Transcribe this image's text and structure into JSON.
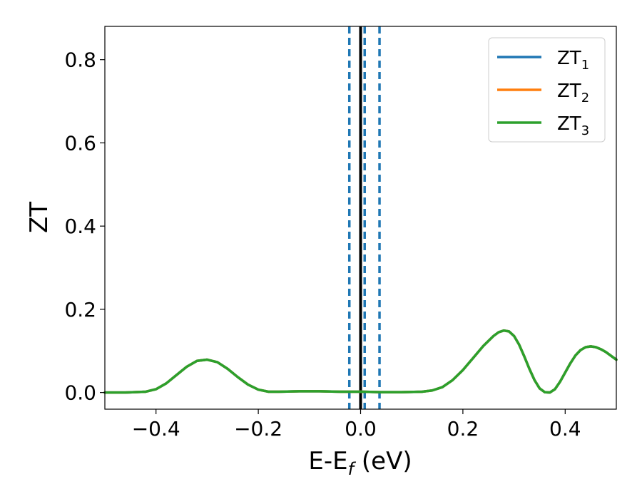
{
  "chart_data": {
    "type": "line",
    "xlabel_main": "E-E",
    "xlabel_sub": "f",
    "xlabel_unit": " (eV)",
    "ylabel": "ZT",
    "xlim": [
      -0.5,
      0.5
    ],
    "ylim": [
      -0.04,
      0.88
    ],
    "xticks": [
      {
        "value": -0.4,
        "label": "−0.4"
      },
      {
        "value": -0.2,
        "label": "−0.2"
      },
      {
        "value": 0.0,
        "label": "0.0"
      },
      {
        "value": 0.2,
        "label": "0.2"
      },
      {
        "value": 0.4,
        "label": "0.4"
      }
    ],
    "yticks": [
      {
        "value": 0.0,
        "label": "0.0"
      },
      {
        "value": 0.2,
        "label": "0.2"
      },
      {
        "value": 0.4,
        "label": "0.4"
      },
      {
        "value": 0.6,
        "label": "0.6"
      },
      {
        "value": 0.8,
        "label": "0.8"
      }
    ],
    "grid": false,
    "legend_position": "top-right",
    "series": [
      {
        "name_main": "ZT",
        "name_sub": "1",
        "color": "#1f77b4"
      },
      {
        "name_main": "ZT",
        "name_sub": "2",
        "color": "#ff7f0e"
      },
      {
        "name_main": "ZT",
        "name_sub": "3",
        "color": "#2ca02c"
      }
    ],
    "curve": {
      "x": [
        -0.5,
        -0.46,
        -0.42,
        -0.4,
        -0.38,
        -0.36,
        -0.34,
        -0.32,
        -0.3,
        -0.28,
        -0.26,
        -0.24,
        -0.22,
        -0.2,
        -0.18,
        -0.16,
        -0.12,
        -0.08,
        -0.04,
        0.0,
        0.04,
        0.08,
        0.12,
        0.14,
        0.16,
        0.18,
        0.2,
        0.22,
        0.24,
        0.26,
        0.27,
        0.28,
        0.29,
        0.3,
        0.31,
        0.32,
        0.33,
        0.34,
        0.35,
        0.36,
        0.37,
        0.38,
        0.39,
        0.4,
        0.41,
        0.42,
        0.43,
        0.44,
        0.45,
        0.46,
        0.47,
        0.48,
        0.49,
        0.5
      ],
      "y": [
        0.0,
        0.0,
        0.002,
        0.008,
        0.022,
        0.042,
        0.062,
        0.076,
        0.079,
        0.073,
        0.057,
        0.037,
        0.019,
        0.007,
        0.002,
        0.002,
        0.003,
        0.003,
        0.002,
        0.002,
        0.001,
        0.001,
        0.002,
        0.005,
        0.013,
        0.03,
        0.054,
        0.083,
        0.112,
        0.136,
        0.145,
        0.149,
        0.147,
        0.136,
        0.115,
        0.087,
        0.057,
        0.03,
        0.01,
        0.001,
        0.0,
        0.008,
        0.026,
        0.048,
        0.07,
        0.089,
        0.102,
        0.109,
        0.111,
        0.109,
        0.104,
        0.097,
        0.088,
        0.079
      ],
      "color": "#2ca02c"
    },
    "vlines": [
      {
        "x": -0.022,
        "color": "#1f77b4",
        "style": "dashed"
      },
      {
        "x": 0.0,
        "color": "#000000",
        "style": "solid"
      },
      {
        "x": 0.008,
        "color": "#1f77b4",
        "style": "dashed"
      },
      {
        "x": 0.037,
        "color": "#1f77b4",
        "style": "dashed"
      }
    ]
  }
}
